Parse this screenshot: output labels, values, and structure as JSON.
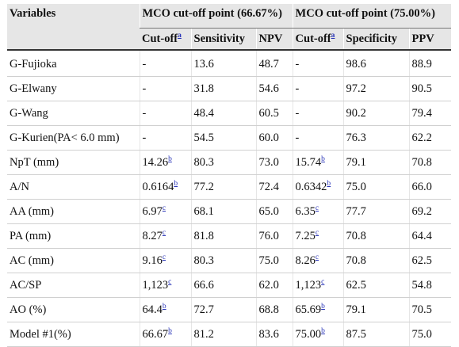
{
  "header": {
    "variables": "Variables",
    "group1": "MCO cut-off point (66.67%)",
    "group2": "MCO cut-off point (75.00%)",
    "sub": [
      "Cut-off",
      "Sensitivity",
      "NPV",
      "Cut-off",
      "Specificity",
      "PPV"
    ],
    "cutoff_note": "a"
  },
  "rows": [
    {
      "var": "G-Fujioka",
      "c1": "-",
      "c1n": "",
      "sens": "13.6",
      "npv": "48.7",
      "c2": "-",
      "c2n": "",
      "spec": "98.6",
      "ppv": "88.9"
    },
    {
      "var": "G-Elwany",
      "c1": "-",
      "c1n": "",
      "sens": "31.8",
      "npv": "54.6",
      "c2": "-",
      "c2n": "",
      "spec": "97.2",
      "ppv": "90.5"
    },
    {
      "var": "G-Wang",
      "c1": "-",
      "c1n": "",
      "sens": "48.4",
      "npv": "60.5",
      "c2": "-",
      "c2n": "",
      "spec": "90.2",
      "ppv": "79.4"
    },
    {
      "var": "G-Kurien(PA< 6.0 mm)",
      "c1": "-",
      "c1n": "",
      "sens": "54.5",
      "npv": "60.0",
      "c2": "-",
      "c2n": "",
      "spec": "76.3",
      "ppv": "62.2"
    },
    {
      "var": "NpT (mm)",
      "c1": "14.26",
      "c1n": "b",
      "sens": "80.3",
      "npv": "73.0",
      "c2": "15.74",
      "c2n": "b",
      "spec": "79.1",
      "ppv": "70.8"
    },
    {
      "var": "A/N",
      "c1": "0.6164",
      "c1n": "b",
      "sens": "77.2",
      "npv": "72.4",
      "c2": "0.6342",
      "c2n": "b",
      "spec": "75.0",
      "ppv": "66.0"
    },
    {
      "var": "AA (mm)",
      "c1": "6.97",
      "c1n": "c",
      "sens": "68.1",
      "npv": "65.0",
      "c2": "6.35",
      "c2n": "c",
      "spec": "77.7",
      "ppv": "69.2"
    },
    {
      "var": "PA (mm)",
      "c1": "8.27",
      "c1n": "c",
      "sens": "81.8",
      "npv": "76.0",
      "c2": "7.25",
      "c2n": "c",
      "spec": "70.8",
      "ppv": "64.4"
    },
    {
      "var": "AC (mm)",
      "c1": "9.16",
      "c1n": "c",
      "sens": "80.3",
      "npv": "75.0",
      "c2": "8.26",
      "c2n": "c",
      "spec": "70.8",
      "ppv": "62.5"
    },
    {
      "var": "AC/SP",
      "c1": "1,123",
      "c1n": "c",
      "sens": "66.6",
      "npv": "62.0",
      "c2": "1,123",
      "c2n": "c",
      "spec": "62.5",
      "ppv": "54.8"
    },
    {
      "var": "AO (%)",
      "c1": "64.4",
      "c1n": "b",
      "sens": "72.7",
      "npv": "68.8",
      "c2": "65.69",
      "c2n": "b",
      "spec": "79.1",
      "ppv": "70.5"
    },
    {
      "var": "Model #1(%)",
      "c1": "66.67",
      "c1n": "b",
      "sens": "81.2",
      "npv": "83.6",
      "c2": "75.00",
      "c2n": "b",
      "spec": "87.5",
      "ppv": "75.0"
    }
  ]
}
